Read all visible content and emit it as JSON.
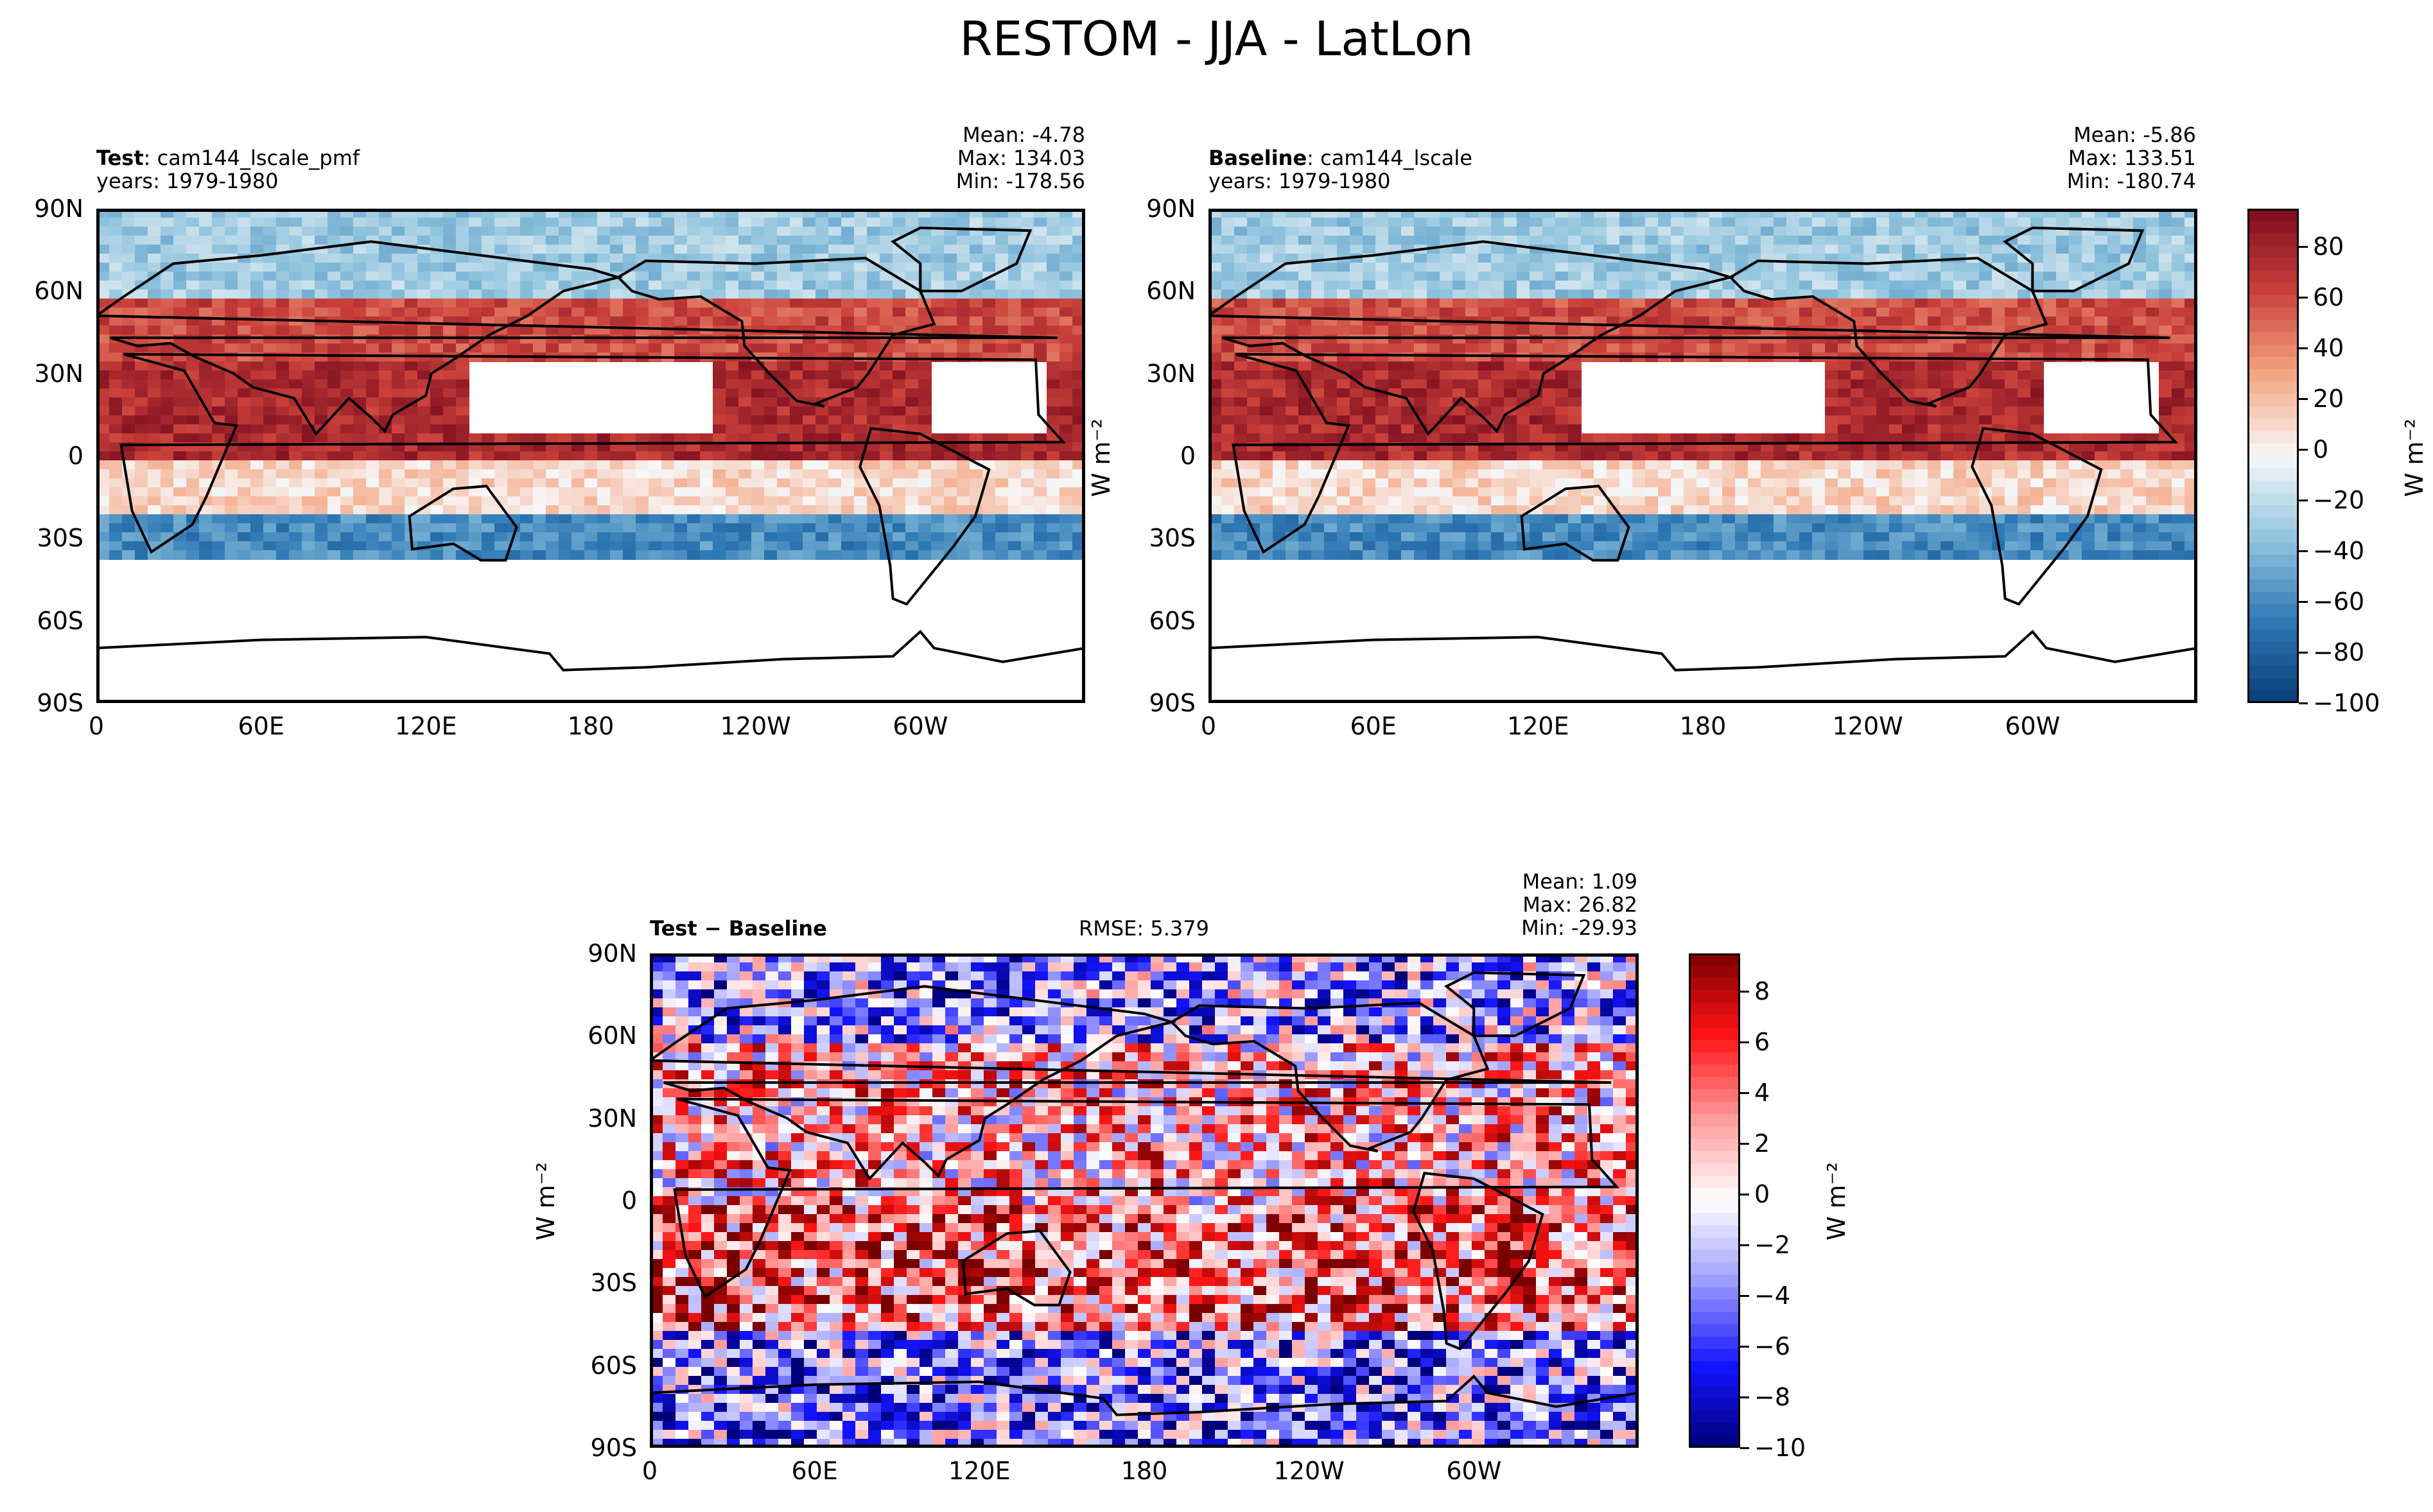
{
  "title": "RESTOM - JJA - LatLon",
  "panels": [
    {
      "id": "test",
      "label_bold": "Test",
      "label_rest": ": cam144_lscale_pmf",
      "years": "years: 1979-1980",
      "stats": [
        "Mean: -4.78",
        "Max: 134.03",
        "Min: -178.56"
      ]
    },
    {
      "id": "baseline",
      "label_bold": "Baseline",
      "label_rest": ": cam144_lscale",
      "years": "years: 1979-1980",
      "stats": [
        "Mean: -5.86",
        "Max: 133.51",
        "Min: -180.74"
      ]
    },
    {
      "id": "diff",
      "label_bold": "Test − Baseline",
      "rmse": "RMSE: 5.379",
      "stats": [
        "Mean:  1.09",
        "Max: 26.82",
        "Min: -29.93"
      ]
    }
  ],
  "axes": {
    "y_ticks": [
      "90N",
      "60N",
      "30N",
      "0",
      "30S",
      "60S",
      "90S"
    ],
    "x_ticks": [
      "0",
      "60E",
      "120E",
      "180",
      "120W",
      "60W"
    ],
    "unit_label": "W m⁻²"
  },
  "colorbars": [
    {
      "id": "top",
      "ticks": [
        "80",
        "60",
        "40",
        "20",
        "0",
        "−20",
        "−40",
        "−60",
        "−80",
        "−100"
      ],
      "range": [
        -100,
        95
      ],
      "colors": [
        "#083d77",
        "#2f79b5",
        "#92c5de",
        "#f7f7f7",
        "#f4a582",
        "#c9403a",
        "#7a0c1f"
      ]
    },
    {
      "id": "diff",
      "ticks": [
        "8",
        "6",
        "4",
        "2",
        "0",
        "−2",
        "−4",
        "−6",
        "−8",
        "−10"
      ],
      "range": [
        -10,
        9.5
      ],
      "colors": [
        "#00007a",
        "#1414ff",
        "#9a9aff",
        "#ffffff",
        "#ff9a9a",
        "#ff1414",
        "#7a0000"
      ]
    }
  ],
  "chart_data": [
    {
      "type": "heatmap",
      "title": "",
      "subtitle": "Test: cam144_lscale_pmf",
      "xlabel": "",
      "ylabel": "",
      "x_range": [
        0,
        360
      ],
      "y_range": [
        -90,
        90
      ],
      "colorbar_label": "W m⁻²",
      "clim": [
        -100,
        95
      ],
      "zones": [
        {
          "lat": [
            60,
            90
          ],
          "value": -30
        },
        {
          "lat": [
            35,
            60
          ],
          "value": 60
        },
        {
          "lat": [
            0,
            35
          ],
          "value": 75
        },
        {
          "lat": [
            -20,
            0
          ],
          "value": 10
        },
        {
          "lat": [
            -35,
            -20
          ],
          "value": -60
        },
        {
          "lat": [
            -90,
            -35
          ],
          "value": null
        }
      ]
    },
    {
      "type": "heatmap",
      "title": "",
      "subtitle": "Baseline: cam144_lscale",
      "xlabel": "",
      "ylabel": "",
      "x_range": [
        0,
        360
      ],
      "y_range": [
        -90,
        90
      ],
      "colorbar_label": "W m⁻²",
      "clim": [
        -100,
        95
      ],
      "zones": [
        {
          "lat": [
            60,
            90
          ],
          "value": -30
        },
        {
          "lat": [
            35,
            60
          ],
          "value": 60
        },
        {
          "lat": [
            0,
            35
          ],
          "value": 75
        },
        {
          "lat": [
            -20,
            0
          ],
          "value": 10
        },
        {
          "lat": [
            -35,
            -20
          ],
          "value": -60
        },
        {
          "lat": [
            -90,
            -35
          ],
          "value": null
        }
      ]
    },
    {
      "type": "heatmap",
      "title": "",
      "subtitle": "Test − Baseline",
      "xlabel": "",
      "ylabel": "W m⁻²",
      "x_range": [
        0,
        360
      ],
      "y_range": [
        -90,
        90
      ],
      "colorbar_label": "W m⁻²",
      "clim": [
        -10,
        9.5
      ],
      "zones": [
        {
          "lat": [
            60,
            90
          ],
          "value": -3
        },
        {
          "lat": [
            0,
            60
          ],
          "value": 2
        },
        {
          "lat": [
            -45,
            0
          ],
          "value": 4
        },
        {
          "lat": [
            -90,
            -45
          ],
          "value": -4
        }
      ]
    }
  ]
}
